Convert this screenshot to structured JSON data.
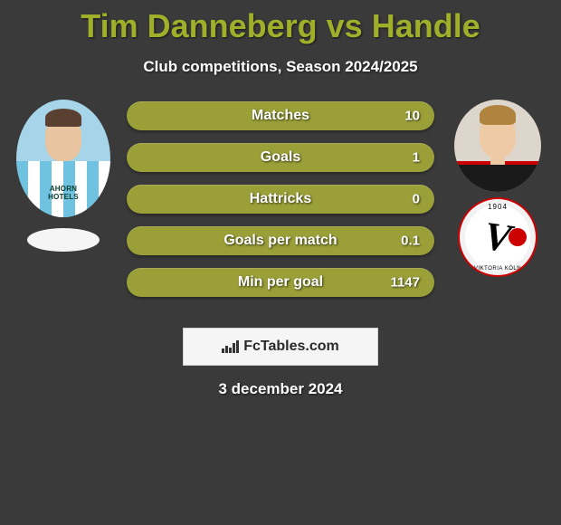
{
  "title_color": "#9faf2a",
  "title": "Tim Danneberg vs Handle",
  "subtitle": "Club competitions, Season 2024/2025",
  "date": "3 december 2024",
  "watermark": "FcTables.com",
  "left_player": {
    "name": "Tim Danneberg",
    "jersey_sponsor": "AHORN HOTELS"
  },
  "right_player": {
    "name": "Handle",
    "club_year": "1904",
    "club_name": "VIKTORIA KÖLN"
  },
  "bar_color": "#9a9f38",
  "stats": [
    {
      "label": "Matches",
      "right_value": "10"
    },
    {
      "label": "Goals",
      "right_value": "1"
    },
    {
      "label": "Hattricks",
      "right_value": "0"
    },
    {
      "label": "Goals per match",
      "right_value": "0.1"
    },
    {
      "label": "Min per goal",
      "right_value": "1147"
    }
  ]
}
